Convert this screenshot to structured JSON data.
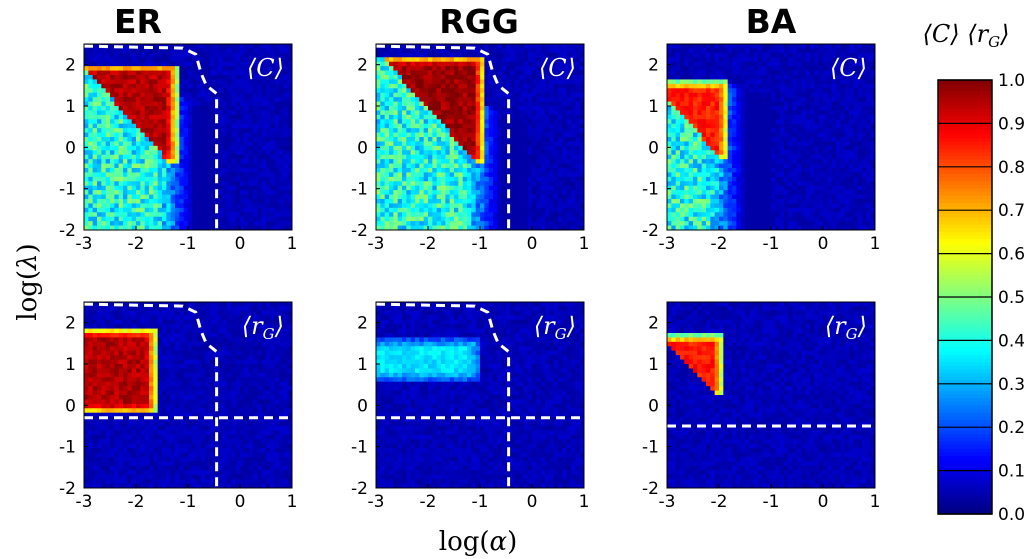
{
  "column_titles": [
    "ER",
    "RGG",
    "BA"
  ],
  "colorbar": {
    "title": "⟨C⟩ ⟨r_G⟩",
    "title_parts": [
      "⟨",
      "C",
      "⟩ ⟨",
      "r",
      "G",
      "⟩"
    ],
    "min": 0.0,
    "max": 1.0,
    "ticks": [
      "0.0",
      "0.1",
      "0.2",
      "0.3",
      "0.4",
      "0.5",
      "0.6",
      "0.7",
      "0.8",
      "0.9",
      "1.0"
    ],
    "colormap": "jet"
  },
  "axes": {
    "xlabel": "log(α)",
    "xlabel_parts": [
      "log(",
      "α",
      ")"
    ],
    "ylabel": "log(λ)",
    "ylabel_parts": [
      "log(",
      "λ",
      ")"
    ],
    "xlim": [
      -3,
      1
    ],
    "ylim": [
      -2,
      2.5
    ],
    "xticks": [
      "-3",
      "-2",
      "-1",
      "0",
      "1"
    ],
    "yticks": [
      "-2",
      "-1",
      "0",
      "1",
      "2"
    ]
  },
  "panel_labels": {
    "C": "⟨C⟩",
    "rG": "⟨r_G⟩"
  },
  "chart_data": [
    {
      "type": "heatmap",
      "network": "ER",
      "metric": "⟨C⟩",
      "region": {
        "alpha_max": -1.2,
        "lambda_min": -0.4,
        "lambda_max": 2.0,
        "inside_value": 0.95,
        "outside_value": 0.4,
        "diagonal_cutoff": true
      },
      "boundary": [
        [
          -3,
          2.45
        ],
        [
          -1.1,
          2.4
        ],
        [
          -0.85,
          2.25
        ],
        [
          -0.75,
          1.8
        ],
        [
          -0.65,
          1.5
        ],
        [
          -0.45,
          1.3
        ],
        [
          -0.45,
          -2
        ]
      ]
    },
    {
      "type": "heatmap",
      "network": "RGG",
      "metric": "⟨C⟩",
      "region": {
        "alpha_max": -0.9,
        "lambda_min": -0.4,
        "lambda_max": 2.2,
        "inside_value": 0.97,
        "outside_value": 0.4,
        "diagonal_cutoff": true
      },
      "boundary": [
        [
          -3,
          2.45
        ],
        [
          -1.1,
          2.4
        ],
        [
          -0.85,
          2.25
        ],
        [
          -0.75,
          1.8
        ],
        [
          -0.65,
          1.5
        ],
        [
          -0.45,
          1.3
        ],
        [
          -0.45,
          -2
        ]
      ]
    },
    {
      "type": "heatmap",
      "network": "BA",
      "metric": "⟨C⟩",
      "region": {
        "alpha_max": -1.8,
        "lambda_min": -0.3,
        "lambda_max": 1.6,
        "inside_value": 0.85,
        "outside_value": 0.4,
        "diagonal_cutoff": true
      },
      "boundary": []
    },
    {
      "type": "heatmap",
      "network": "ER",
      "metric": "⟨r_G⟩",
      "region": {
        "alpha_max": -1.6,
        "lambda_min": -0.2,
        "lambda_max": 1.85,
        "inside_value": 0.95,
        "outside_value": 0.05,
        "diagonal_cutoff": false
      },
      "boundary": [
        [
          -3,
          2.45
        ],
        [
          -1.1,
          2.4
        ],
        [
          -0.85,
          2.25
        ],
        [
          -0.75,
          1.8
        ],
        [
          -0.65,
          1.5
        ],
        [
          -0.45,
          1.3
        ],
        [
          -0.45,
          -2
        ]
      ],
      "threshold_lambda": -0.3
    },
    {
      "type": "heatmap",
      "network": "RGG",
      "metric": "⟨r_G⟩",
      "region": {
        "alpha_max": -1.0,
        "lambda_min": 0.6,
        "lambda_max": 1.6,
        "inside_value": 0.35,
        "outside_value": 0.05,
        "diagonal_cutoff": false
      },
      "boundary": [
        [
          -3,
          2.45
        ],
        [
          -1.1,
          2.4
        ],
        [
          -0.85,
          2.25
        ],
        [
          -0.75,
          1.8
        ],
        [
          -0.65,
          1.5
        ],
        [
          -0.45,
          1.3
        ],
        [
          -0.45,
          -2
        ]
      ],
      "threshold_lambda": -0.3
    },
    {
      "type": "heatmap",
      "network": "BA",
      "metric": "⟨r_G⟩",
      "region": {
        "alpha_max": -1.9,
        "lambda_min": 0.2,
        "lambda_max": 1.7,
        "inside_value": 0.85,
        "outside_value": 0.05,
        "diagonal_cutoff": true
      },
      "boundary": [],
      "threshold_lambda": -0.5
    }
  ]
}
